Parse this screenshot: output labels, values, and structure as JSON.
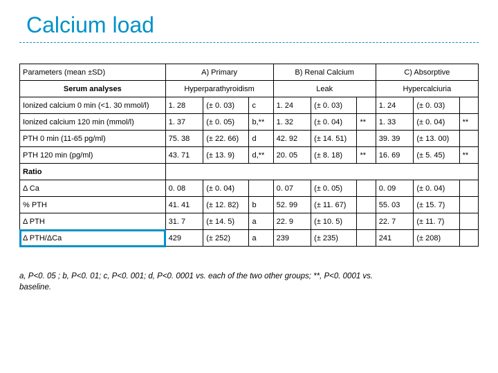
{
  "title": "Calcium load",
  "header": {
    "param": "Parameters (mean ±SD)",
    "serum": "Serum analyses",
    "groupA_top": "A) Primary",
    "groupA_bot": "Hyperparathyroidism",
    "groupB_top": "B) Renal Calcium",
    "groupB_bot": "Leak",
    "groupC_top": "C) Absorptive",
    "groupC_bot": "Hypercalciuria"
  },
  "rows": [
    {
      "label": "Ionized calcium 0 min (<1. 30 mmol/l)",
      "A": {
        "v": "1. 28",
        "sd": "(± 0. 03)",
        "note": "c"
      },
      "B": {
        "v": "1. 24",
        "sd": "(± 0. 03)"
      },
      "C": {
        "v": "1. 24",
        "sd": "(± 0. 03)"
      }
    },
    {
      "label": "Ionized calcium 120 min (mmol/l)",
      "A": {
        "v": "1. 37",
        "sd": "(± 0. 05)",
        "note": "b,**"
      },
      "B": {
        "v": "1. 32",
        "sd": "(± 0. 04)",
        "star": "**"
      },
      "C": {
        "v": "1. 33",
        "sd": "(± 0. 04)",
        "star": "**"
      }
    },
    {
      "label": "PTH 0 min (11-65 pg/ml)",
      "A": {
        "v": "75. 38",
        "sd": "(± 22. 66)",
        "note": "d"
      },
      "B": {
        "v": "42. 92",
        "sd": "(± 14. 51)"
      },
      "C": {
        "v": "39. 39",
        "sd": "(± 13. 00)"
      }
    },
    {
      "label": "PTH 120 min (pg/ml)",
      "A": {
        "v": "43. 71",
        "sd": "(± 13. 9)",
        "note": "d,**"
      },
      "B": {
        "v": "20. 05",
        "sd": "(± 8. 18)",
        "star": "**"
      },
      "C": {
        "v": "16. 69",
        "sd": "(± 5. 45)",
        "star": "**"
      }
    }
  ],
  "ratio_label": "Ratio",
  "ratio_rows": [
    {
      "label": "Δ Ca",
      "A": {
        "v": "0. 08",
        "sd": "(± 0. 04)"
      },
      "B": {
        "v": "0. 07",
        "sd": "(± 0. 05)"
      },
      "C": {
        "v": "0. 09",
        "sd": "(± 0. 04)"
      }
    },
    {
      "label": "% PTH",
      "A": {
        "v": "41. 41",
        "sd": "(± 12. 82)",
        "note": "b"
      },
      "B": {
        "v": "52. 99",
        "sd": "(± 11. 67)"
      },
      "C": {
        "v": "55. 03",
        "sd": "(± 15. 7)"
      }
    },
    {
      "label": "Δ PTH",
      "A": {
        "v": "31. 7",
        "sd": "(± 14. 5)",
        "note": "a"
      },
      "B": {
        "v": "22. 9",
        "sd": "(± 10. 5)"
      },
      "C": {
        "v": "22. 7",
        "sd": "(± 11. 7)"
      }
    },
    {
      "label": "Δ PTH/ΔCa",
      "highlight": true,
      "A": {
        "v": "429",
        "sd": "(± 252)",
        "note": "a"
      },
      "B": {
        "v": "239",
        "sd": "(± 235)"
      },
      "C": {
        "v": "241",
        "sd": "(± 208)"
      }
    }
  ],
  "footnote_html": "a, P<0. 05 ; b, P<0. 01; c, P<0. 001; d, P<0. 0001 vs. each of the two other groups; **, P<0. 0001 vs. baseline."
}
